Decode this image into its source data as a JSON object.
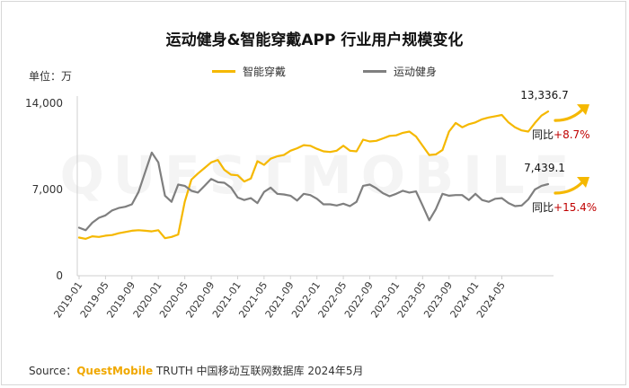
{
  "colors": {
    "smart_wear": "#F5B800",
    "sports_fitness": "#7F7F7F",
    "growth": "#C00000",
    "arrow": "#F5B800"
  },
  "unit_label": "单位：万",
  "source": {
    "prefix": "Source：",
    "brand": "QuestMobile",
    "suffix": " TRUTH 中国移动互联网数据库 2024年5月"
  },
  "watermark": "QUESTMOBILE",
  "chart_data": {
    "type": "line",
    "title": "运动健身&智能穿戴APP 行业用户规模变化",
    "xlabel": "",
    "ylabel": "",
    "ylim": [
      0,
      14000
    ],
    "yticks": [
      "0",
      "7,000",
      "14,000"
    ],
    "xtick_labels": [
      "2019-01",
      "2019-05",
      "2019-09",
      "2020-01",
      "2020-05",
      "2020-09",
      "2021-01",
      "2021-05",
      "2021-09",
      "2022-01",
      "2022-05",
      "2022-09",
      "2023-01",
      "2023-05",
      "2023-09",
      "2024-01",
      "2024-05"
    ],
    "legend_position": "top-center",
    "grid": false,
    "x_start": "2019-01",
    "series": [
      {
        "name": "智能穿戴",
        "values": [
          3100,
          3000,
          3200,
          3150,
          3250,
          3300,
          3450,
          3550,
          3650,
          3700,
          3650,
          3600,
          3700,
          3050,
          3150,
          3350,
          6000,
          7800,
          8300,
          8750,
          9200,
          9400,
          8600,
          8200,
          8150,
          7650,
          7900,
          9300,
          9000,
          9500,
          9700,
          9800,
          10150,
          10350,
          10600,
          10550,
          10300,
          10100,
          10050,
          10150,
          10550,
          10150,
          10100,
          11050,
          10900,
          10950,
          11150,
          11350,
          11400,
          11600,
          11700,
          11300,
          10550,
          9800,
          9850,
          10200,
          11700,
          12400,
          12050,
          12300,
          12450,
          12700,
          12850,
          12950,
          13050,
          12450,
          12050,
          11800,
          11700,
          12400,
          13000,
          13336.7
        ],
        "label": "13,336.7",
        "growth_prefix": "同比",
        "growth": "+8.7%"
      },
      {
        "name": "运动健身",
        "values": [
          3900,
          3700,
          4300,
          4700,
          4900,
          5300,
          5500,
          5600,
          5800,
          6800,
          8400,
          10000,
          9200,
          6500,
          6000,
          7400,
          7300,
          6900,
          6750,
          7300,
          7850,
          7600,
          7550,
          7150,
          6350,
          6150,
          6300,
          5900,
          6800,
          7150,
          6650,
          6600,
          6500,
          6100,
          6650,
          6550,
          6250,
          5800,
          5800,
          5700,
          5850,
          5650,
          6000,
          7300,
          7400,
          7100,
          6700,
          6450,
          6650,
          6900,
          6750,
          6850,
          5700,
          4500,
          5400,
          6650,
          6500,
          6550,
          6550,
          6150,
          6650,
          6150,
          6000,
          6250,
          6300,
          5900,
          5650,
          5700,
          6200,
          7000,
          7300,
          7439.1
        ],
        "label": "7,439.1",
        "growth_prefix": "同比",
        "growth": "+15.4%"
      }
    ]
  }
}
